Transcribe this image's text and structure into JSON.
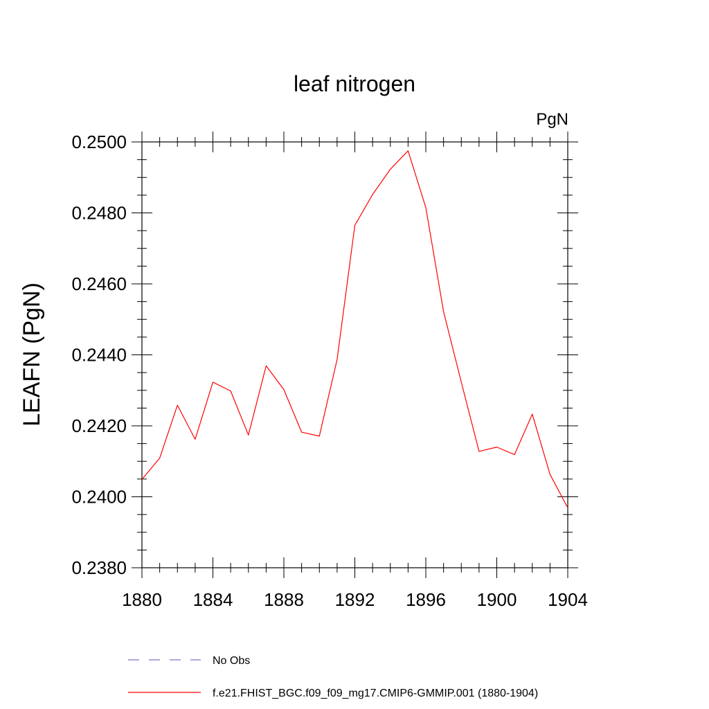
{
  "chart_data": {
    "type": "line",
    "title": "leaf nitrogen",
    "units_label": "PgN",
    "ylabel": "LEAFN  (PgN)",
    "xlabel": "",
    "xlim": [
      1880,
      1904
    ],
    "ylim": [
      0.238,
      0.25
    ],
    "x_ticks": [
      "1880",
      "1884",
      "1888",
      "1892",
      "1896",
      "1900",
      "1904"
    ],
    "y_ticks": [
      "0.2380",
      "0.2400",
      "0.2420",
      "0.2440",
      "0.2460",
      "0.2480",
      "0.2500"
    ],
    "grid": false,
    "legend_position": "bottom",
    "series": [
      {
        "name": "f.e21.FHIST_BGC.f09_f09_mg17.CMIP6-GMMIP.001 (1880-1904)",
        "color": "#ff0000",
        "style": "solid",
        "x": [
          1880,
          1881,
          1882,
          1883,
          1884,
          1885,
          1886,
          1887,
          1888,
          1889,
          1890,
          1891,
          1892,
          1893,
          1894,
          1895,
          1896,
          1897,
          1898,
          1899,
          1900,
          1901,
          1902,
          1903,
          1904
        ],
        "values": [
          0.24049,
          0.24109,
          0.24258,
          0.24162,
          0.24323,
          0.24298,
          0.24174,
          0.24369,
          0.24302,
          0.24182,
          0.24171,
          0.24387,
          0.24765,
          0.24852,
          0.24923,
          0.24975,
          0.24815,
          0.24522,
          0.24323,
          0.24128,
          0.2414,
          0.24119,
          0.24233,
          0.24063,
          0.23969
        ]
      }
    ],
    "legend": [
      {
        "label": "No Obs",
        "color": "#7777cc",
        "style": "dashed"
      },
      {
        "label": "f.e21.FHIST_BGC.f09_f09_mg17.CMIP6-GMMIP.001 (1880-1904)",
        "color": "#ff0000",
        "style": "solid"
      }
    ]
  }
}
